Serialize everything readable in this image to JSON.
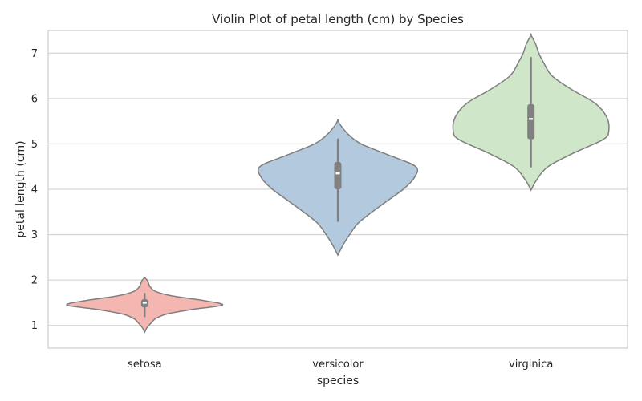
{
  "chart_data": {
    "type": "violin",
    "title": "Violin Plot of petal length (cm) by Species",
    "xlabel": "species",
    "ylabel": "petal length (cm)",
    "categories": [
      "setosa",
      "versicolor",
      "virginica"
    ],
    "yticks": [
      1,
      2,
      3,
      4,
      5,
      6,
      7
    ],
    "ylim": [
      0.5,
      7.5
    ],
    "grid": "horizontal",
    "series": [
      {
        "category": "setosa",
        "color": "#f4b6b1",
        "whisker_low": 1.2,
        "q1": 1.4,
        "median": 1.5,
        "q3": 1.575,
        "whisker_high": 1.7,
        "density": [
          [
            0.85,
            0.0
          ],
          [
            0.95,
            0.03
          ],
          [
            1.05,
            0.08
          ],
          [
            1.15,
            0.14
          ],
          [
            1.25,
            0.28
          ],
          [
            1.35,
            0.6
          ],
          [
            1.45,
            1.0
          ],
          [
            1.55,
            0.75
          ],
          [
            1.65,
            0.35
          ],
          [
            1.75,
            0.14
          ],
          [
            1.85,
            0.07
          ],
          [
            1.95,
            0.045
          ],
          [
            2.0,
            0.03
          ],
          [
            2.05,
            0.0
          ]
        ]
      },
      {
        "category": "versicolor",
        "color": "#b3cade",
        "whisker_low": 3.3,
        "q1": 4.0,
        "median": 4.35,
        "q3": 4.6,
        "whisker_high": 5.1,
        "density": [
          [
            2.55,
            0.0
          ],
          [
            2.75,
            0.06
          ],
          [
            3.0,
            0.15
          ],
          [
            3.25,
            0.26
          ],
          [
            3.5,
            0.44
          ],
          [
            3.75,
            0.64
          ],
          [
            4.0,
            0.84
          ],
          [
            4.25,
            0.98
          ],
          [
            4.5,
            1.0
          ],
          [
            4.75,
            0.66
          ],
          [
            5.0,
            0.3
          ],
          [
            5.2,
            0.14
          ],
          [
            5.4,
            0.04
          ],
          [
            5.52,
            0.0
          ]
        ]
      },
      {
        "category": "virginica",
        "color": "#d0e6c8",
        "whisker_low": 4.5,
        "q1": 5.1,
        "median": 5.55,
        "q3": 5.875,
        "whisker_high": 6.9,
        "density": [
          [
            3.98,
            0.0
          ],
          [
            4.2,
            0.07
          ],
          [
            4.5,
            0.22
          ],
          [
            4.8,
            0.55
          ],
          [
            5.1,
            0.93
          ],
          [
            5.3,
            1.0
          ],
          [
            5.6,
            0.97
          ],
          [
            5.9,
            0.82
          ],
          [
            6.2,
            0.52
          ],
          [
            6.5,
            0.27
          ],
          [
            6.8,
            0.16
          ],
          [
            7.0,
            0.1
          ],
          [
            7.2,
            0.06
          ],
          [
            7.4,
            0.0
          ]
        ]
      }
    ]
  }
}
